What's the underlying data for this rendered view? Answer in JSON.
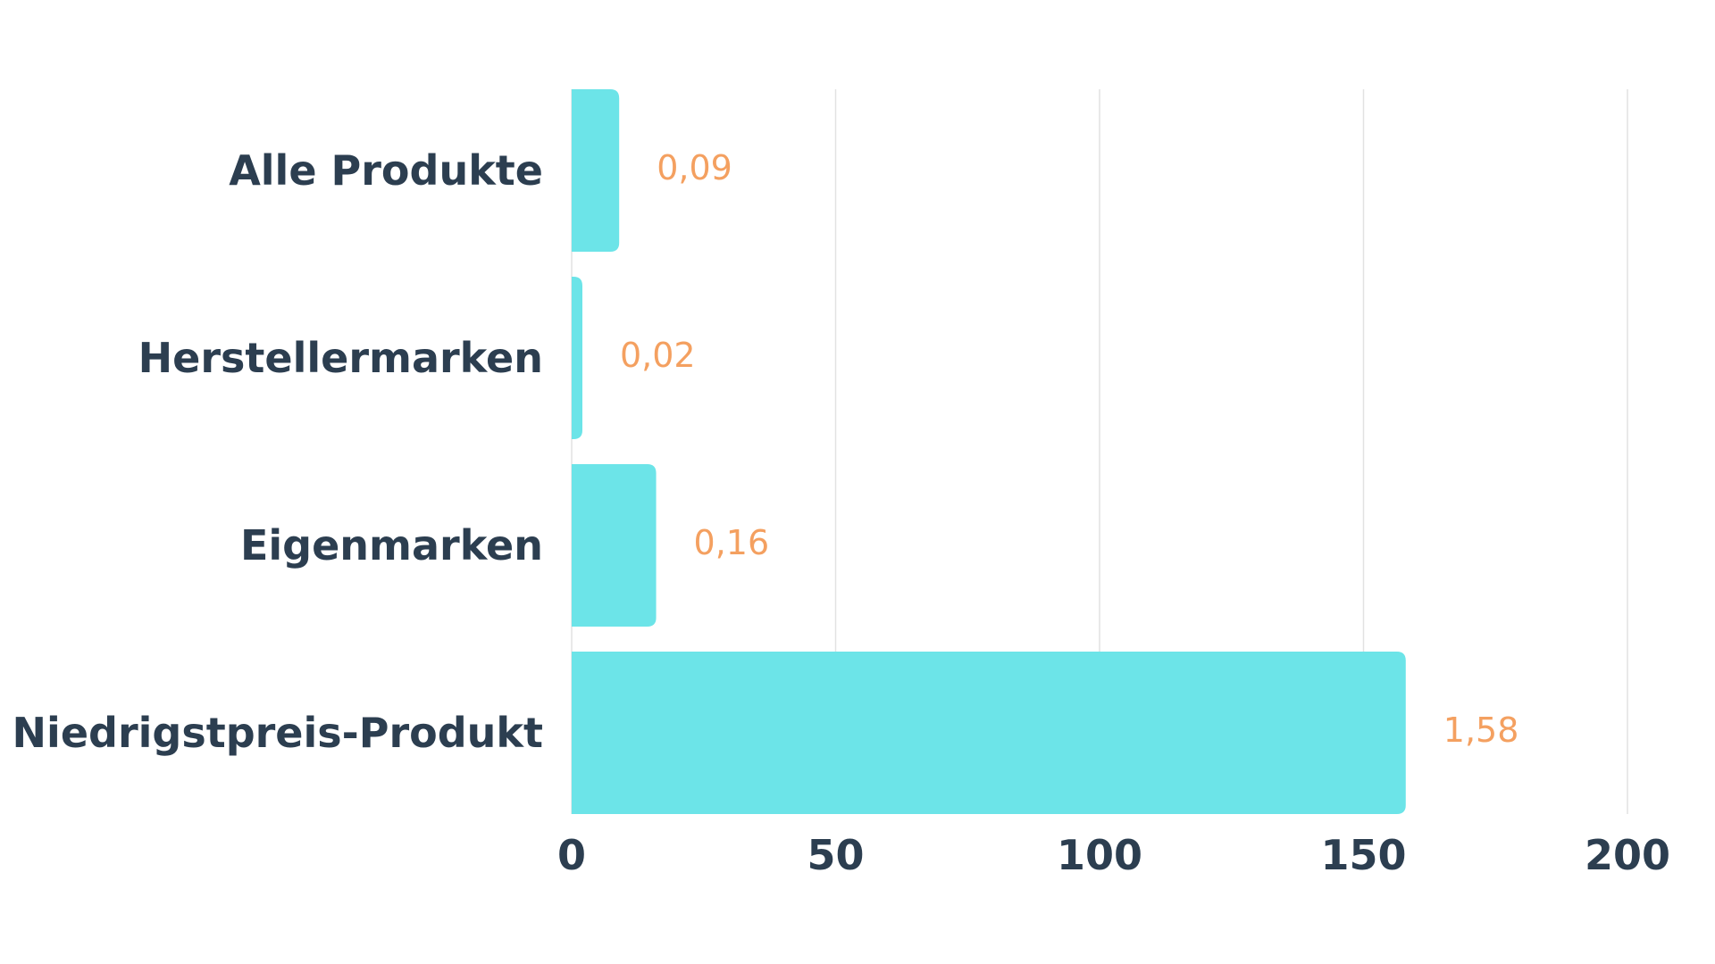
{
  "chart_data": {
    "type": "bar",
    "orientation": "horizontal",
    "title": "",
    "xlabel": "",
    "ylabel": "",
    "categories": [
      "Alle Produkte",
      "Herstellermarken",
      "Eigenmarken",
      "Niedrigstpreis-Produkt"
    ],
    "values": [
      9,
      2,
      16,
      158
    ],
    "value_labels": [
      "0,09",
      "0,02",
      "0,16",
      "1,58"
    ],
    "xlim": [
      0,
      200
    ],
    "xticks": [
      0,
      50,
      100,
      150,
      200
    ],
    "xtick_labels": [
      "0",
      "50",
      "100",
      "150",
      "200"
    ],
    "grid": "vertical",
    "legend": "none"
  },
  "colors": {
    "bar": "#6ce4e8",
    "value_label": "#f4a060",
    "category_text": "#2c3e50",
    "tick_text": "#2c3e50",
    "grid": "#e2e2e2",
    "background": "#ffffff"
  }
}
